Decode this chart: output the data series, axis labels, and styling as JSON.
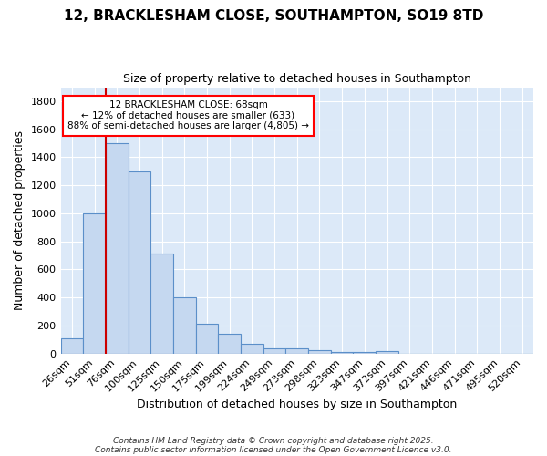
{
  "title_line1": "12, BRACKLESHAM CLOSE, SOUTHAMPTON, SO19 8TD",
  "title_line2": "Size of property relative to detached houses in Southampton",
  "xlabel": "Distribution of detached houses by size in Southampton",
  "ylabel": "Number of detached properties",
  "categories": [
    "26sqm",
    "51sqm",
    "76sqm",
    "100sqm",
    "125sqm",
    "150sqm",
    "175sqm",
    "199sqm",
    "224sqm",
    "249sqm",
    "273sqm",
    "298sqm",
    "323sqm",
    "347sqm",
    "372sqm",
    "397sqm",
    "421sqm",
    "446sqm",
    "471sqm",
    "495sqm",
    "520sqm"
  ],
  "values": [
    110,
    1000,
    1500,
    1300,
    710,
    400,
    210,
    140,
    70,
    38,
    35,
    25,
    12,
    8,
    18,
    0,
    0,
    0,
    0,
    0,
    0
  ],
  "bar_color": "#c5d8f0",
  "bar_edge_color": "#5b8fc9",
  "plot_bg_color": "#dce9f8",
  "fig_bg_color": "#ffffff",
  "grid_color": "#ffffff",
  "vline_color": "#cc0000",
  "vline_x_idx": 1.5,
  "annotation_text": "12 BRACKLESHAM CLOSE: 68sqm\n← 12% of detached houses are smaller (633)\n88% of semi-detached houses are larger (4,805) →",
  "ylim": [
    0,
    1900
  ],
  "yticks": [
    0,
    200,
    400,
    600,
    800,
    1000,
    1200,
    1400,
    1600,
    1800
  ],
  "footer_line1": "Contains HM Land Registry data © Crown copyright and database right 2025.",
  "footer_line2": "Contains public sector information licensed under the Open Government Licence v3.0."
}
